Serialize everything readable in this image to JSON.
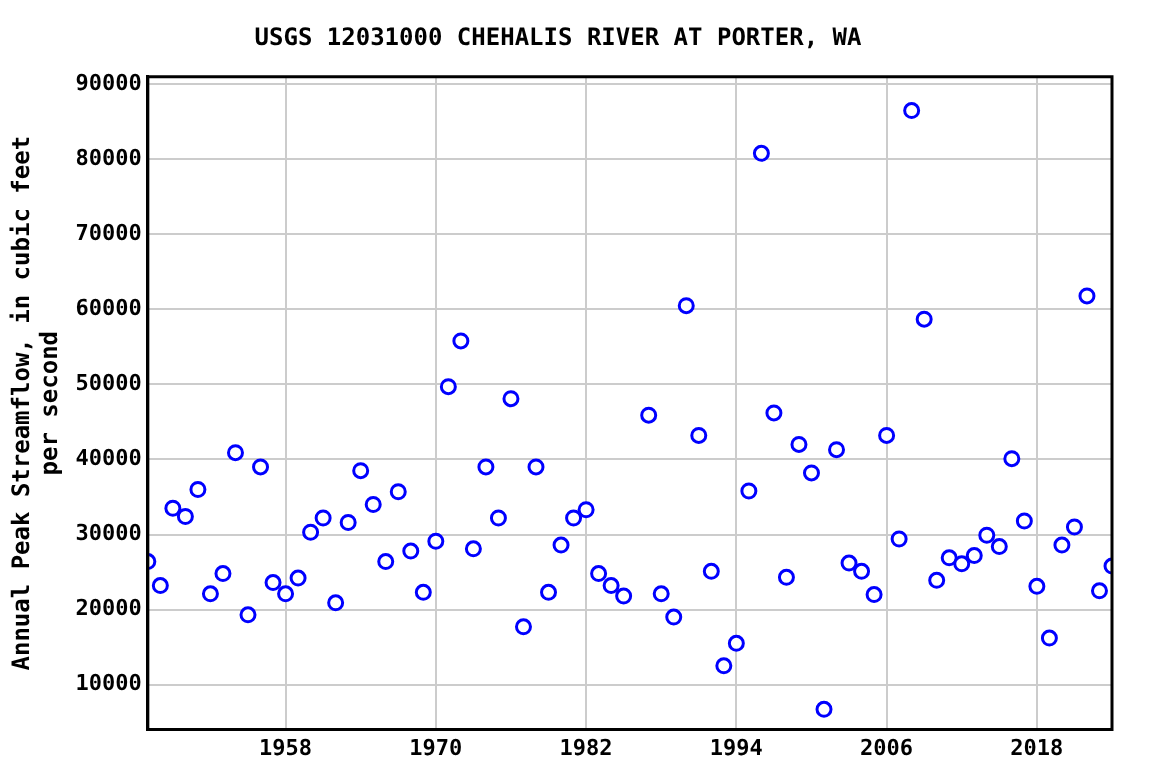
{
  "chart_data": {
    "type": "scatter",
    "title": "USGS 12031000 CHEHALIS RIVER AT PORTER, WA",
    "ylabel": "Annual Peak Streamflow, in cubic feet\nper second",
    "x": [
      1947,
      1948,
      1949,
      1950,
      1951,
      1952,
      1953,
      1954,
      1955,
      1956,
      1957,
      1958,
      1959,
      1960,
      1961,
      1962,
      1963,
      1964,
      1965,
      1966,
      1967,
      1968,
      1969,
      1970,
      1971,
      1972,
      1973,
      1974,
      1975,
      1976,
      1977,
      1978,
      1979,
      1980,
      1981,
      1982,
      1983,
      1984,
      1985,
      1987,
      1988,
      1989,
      1990,
      1991,
      1992,
      1993,
      1994,
      1995,
      1996,
      1997,
      1998,
      1999,
      2000,
      2001,
      2002,
      2003,
      2004,
      2005,
      2006,
      2007,
      2008,
      2009,
      2010,
      2011,
      2012,
      2013,
      2014,
      2015,
      2016,
      2017,
      2018,
      2019,
      2020,
      2021,
      2022,
      2023,
      2024
    ],
    "series": [
      {
        "color": "#0000ff",
        "values": [
          26400,
          23200,
          33500,
          32400,
          36000,
          22100,
          24800,
          40900,
          19300,
          39000,
          23600,
          22100,
          24200,
          30300,
          32200,
          20900,
          31600,
          38500,
          34000,
          26400,
          35700,
          27800,
          22300,
          29100,
          49700,
          55800,
          28100,
          39000,
          32200,
          48100,
          17700,
          39000,
          22300,
          28600,
          32200,
          33300,
          24800,
          23200,
          21800,
          45900,
          22100,
          19000,
          60500,
          43200,
          25100,
          12500,
          15500,
          35800,
          80800,
          46200,
          24300,
          42000,
          38200,
          6700,
          41300,
          26200,
          25100,
          22000,
          43200,
          29400,
          86500,
          58700,
          23900,
          26900,
          26100,
          27200,
          29900,
          28400,
          40100,
          31800,
          23100,
          16200,
          28600,
          31000,
          61800,
          22500,
          25800
        ]
      }
    ],
    "xlim": [
      1947,
      2024
    ],
    "xticks": [
      1958,
      1970,
      1982,
      1994,
      2006,
      2018
    ],
    "ylim": [
      4000,
      91000
    ],
    "yticks": [
      10000,
      20000,
      30000,
      40000,
      50000,
      60000,
      70000,
      80000,
      90000
    ],
    "grid": true,
    "marker": "circle",
    "legend": false
  }
}
